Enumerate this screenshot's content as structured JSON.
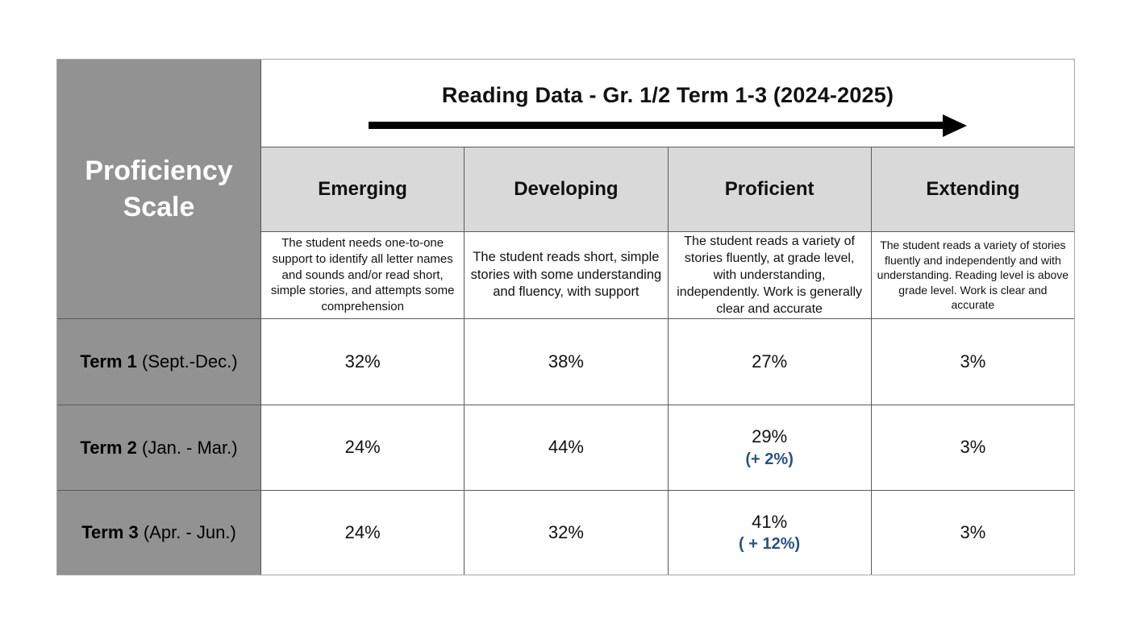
{
  "table": {
    "title": "Reading Data - Gr. 1/2 Term 1-3 (2024-2025)",
    "corner_label": "Proficiency Scale",
    "columns": [
      {
        "label": "Emerging",
        "description": "The student needs one-to-one support to identify all letter names and sounds and/or read short, simple stories, and attempts some comprehension"
      },
      {
        "label": "Developing",
        "description": "The student reads short, simple stories with some understanding and fluency, with support"
      },
      {
        "label": "Proficient",
        "description": "The student reads a variety of stories fluently, at grade level, with understanding, independently. Work is generally clear and accurate"
      },
      {
        "label": "Extending",
        "description": "The student reads a variety of stories fluently and independently and with understanding. Reading level is above grade level. Work is clear and accurate"
      }
    ],
    "rows": [
      {
        "term": "Term 1",
        "dates": " (Sept.-Dec.)",
        "emerging": "32%",
        "developing": "38%",
        "proficient": "27%",
        "extending": "3%"
      },
      {
        "term": "Term 2",
        "dates": " (Jan. - Mar.)",
        "emerging": "24%",
        "developing": "44%",
        "proficient": "29%",
        "proficient_delta": "(+ 2%)",
        "extending": "3%"
      },
      {
        "term": "Term 3",
        "dates": " (Apr. - Jun.)",
        "emerging": "24%",
        "developing": "32%",
        "proficient": "41%",
        "proficient_delta": "( + 12%)",
        "extending": "3%"
      }
    ],
    "colors": {
      "side_fill": "#929292",
      "header_fill": "#d9d9d9",
      "delta_blue": "#2b5280",
      "arrow": "#000000"
    }
  }
}
